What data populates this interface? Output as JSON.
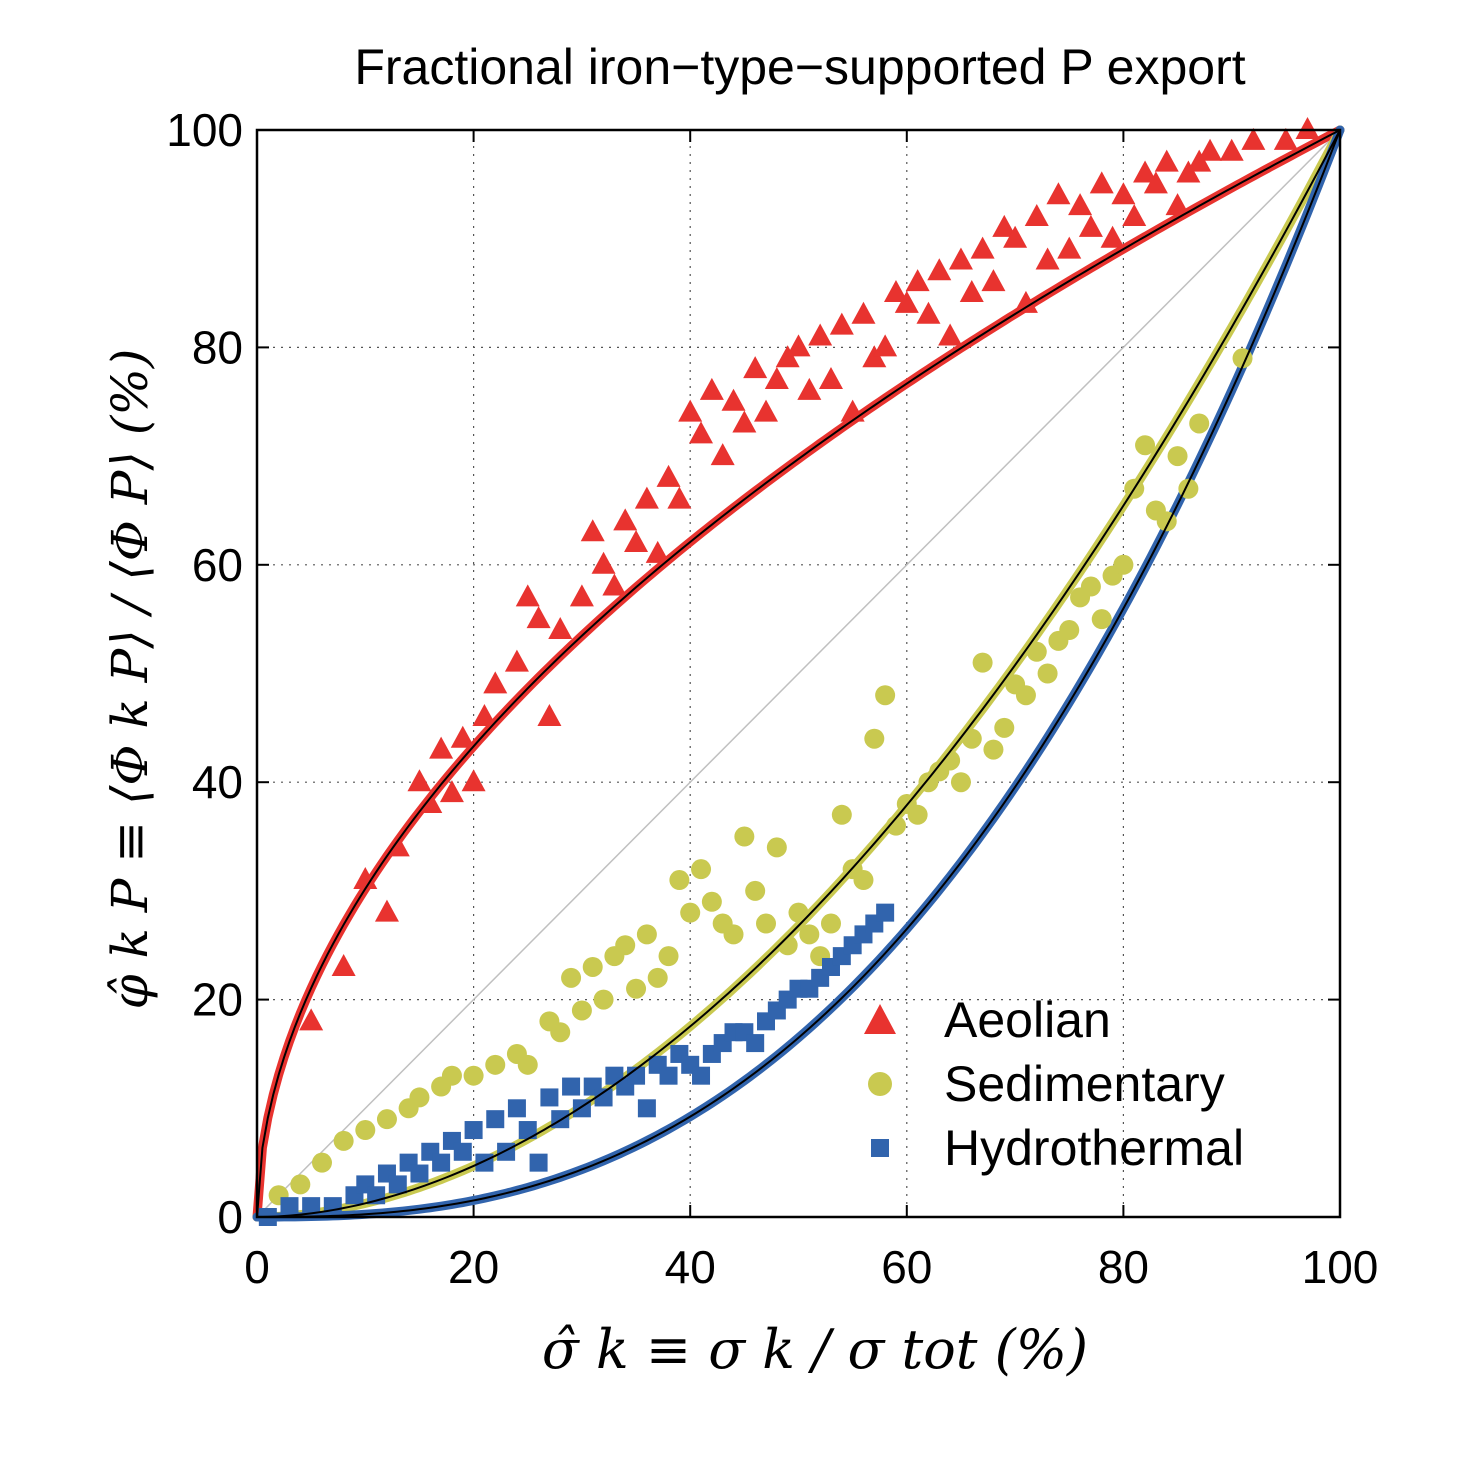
{
  "chart_data": {
    "type": "scatter",
    "title": "Fractional iron−type−supported P export",
    "xlabel": "σ̂ k ≡ σ k / σ tot (%)",
    "ylabel": "φ̂ k P ≡ ⟨Φ k P⟩ / ⟨Φ P⟩ (%)",
    "xlim": [
      0,
      100
    ],
    "ylim": [
      0,
      100
    ],
    "x_ticks": [
      "0",
      "20",
      "40",
      "60",
      "80",
      "100"
    ],
    "y_ticks": [
      "0",
      "20",
      "40",
      "60",
      "80",
      "100"
    ],
    "grid": true,
    "legend_position": "bottom-right",
    "colors": {
      "aeolian": "#e8332f",
      "sedimentary": "#c9c950",
      "hydrothermal": "#3164ad",
      "fit": "#000000",
      "identity": "#c0c0c0"
    },
    "series": [
      {
        "name": "Aeolian",
        "marker": "triangle",
        "color": "#e8332f",
        "points": [
          [
            5,
            18
          ],
          [
            8,
            23
          ],
          [
            10,
            31
          ],
          [
            12,
            28
          ],
          [
            13,
            34
          ],
          [
            15,
            40
          ],
          [
            16,
            38
          ],
          [
            17,
            43
          ],
          [
            18,
            39
          ],
          [
            19,
            44
          ],
          [
            20,
            40
          ],
          [
            21,
            46
          ],
          [
            22,
            49
          ],
          [
            24,
            51
          ],
          [
            25,
            57
          ],
          [
            26,
            55
          ],
          [
            27,
            46
          ],
          [
            28,
            54
          ],
          [
            30,
            57
          ],
          [
            31,
            63
          ],
          [
            32,
            60
          ],
          [
            33,
            58
          ],
          [
            34,
            64
          ],
          [
            35,
            62
          ],
          [
            36,
            66
          ],
          [
            37,
            61
          ],
          [
            38,
            68
          ],
          [
            39,
            66
          ],
          [
            40,
            74
          ],
          [
            41,
            72
          ],
          [
            42,
            76
          ],
          [
            43,
            70
          ],
          [
            44,
            75
          ],
          [
            45,
            73
          ],
          [
            46,
            78
          ],
          [
            47,
            74
          ],
          [
            48,
            77
          ],
          [
            49,
            79
          ],
          [
            50,
            80
          ],
          [
            51,
            76
          ],
          [
            52,
            81
          ],
          [
            53,
            77
          ],
          [
            54,
            82
          ],
          [
            55,
            74
          ],
          [
            56,
            83
          ],
          [
            57,
            79
          ],
          [
            58,
            80
          ],
          [
            59,
            85
          ],
          [
            60,
            84
          ],
          [
            61,
            86
          ],
          [
            62,
            83
          ],
          [
            63,
            87
          ],
          [
            64,
            81
          ],
          [
            65,
            88
          ],
          [
            66,
            85
          ],
          [
            67,
            89
          ],
          [
            68,
            86
          ],
          [
            69,
            91
          ],
          [
            70,
            90
          ],
          [
            71,
            84
          ],
          [
            72,
            92
          ],
          [
            73,
            88
          ],
          [
            74,
            94
          ],
          [
            75,
            89
          ],
          [
            76,
            93
          ],
          [
            77,
            91
          ],
          [
            78,
            95
          ],
          [
            79,
            90
          ],
          [
            80,
            94
          ],
          [
            81,
            92
          ],
          [
            82,
            96
          ],
          [
            83,
            95
          ],
          [
            84,
            97
          ],
          [
            85,
            93
          ],
          [
            86,
            96
          ],
          [
            87,
            97
          ],
          [
            88,
            98
          ],
          [
            90,
            98
          ],
          [
            92,
            99
          ],
          [
            95,
            99
          ],
          [
            97,
            100
          ]
        ]
      },
      {
        "name": "Sedimentary",
        "marker": "circle",
        "color": "#c9c950",
        "points": [
          [
            2,
            2
          ],
          [
            4,
            3
          ],
          [
            6,
            5
          ],
          [
            8,
            7
          ],
          [
            10,
            8
          ],
          [
            12,
            9
          ],
          [
            14,
            10
          ],
          [
            15,
            11
          ],
          [
            17,
            12
          ],
          [
            18,
            13
          ],
          [
            20,
            13
          ],
          [
            22,
            14
          ],
          [
            24,
            15
          ],
          [
            25,
            14
          ],
          [
            27,
            18
          ],
          [
            28,
            17
          ],
          [
            29,
            22
          ],
          [
            30,
            19
          ],
          [
            31,
            23
          ],
          [
            32,
            20
          ],
          [
            33,
            24
          ],
          [
            34,
            25
          ],
          [
            35,
            21
          ],
          [
            36,
            26
          ],
          [
            37,
            22
          ],
          [
            38,
            24
          ],
          [
            39,
            31
          ],
          [
            40,
            28
          ],
          [
            41,
            32
          ],
          [
            42,
            29
          ],
          [
            43,
            27
          ],
          [
            44,
            26
          ],
          [
            45,
            35
          ],
          [
            46,
            30
          ],
          [
            47,
            27
          ],
          [
            48,
            34
          ],
          [
            49,
            25
          ],
          [
            50,
            28
          ],
          [
            51,
            26
          ],
          [
            52,
            24
          ],
          [
            53,
            27
          ],
          [
            54,
            37
          ],
          [
            55,
            32
          ],
          [
            56,
            31
          ],
          [
            57,
            44
          ],
          [
            58,
            48
          ],
          [
            59,
            36
          ],
          [
            60,
            38
          ],
          [
            61,
            37
          ],
          [
            62,
            40
          ],
          [
            63,
            41
          ],
          [
            64,
            42
          ],
          [
            65,
            40
          ],
          [
            66,
            44
          ],
          [
            67,
            51
          ],
          [
            68,
            43
          ],
          [
            69,
            45
          ],
          [
            70,
            49
          ],
          [
            71,
            48
          ],
          [
            72,
            52
          ],
          [
            73,
            50
          ],
          [
            74,
            53
          ],
          [
            75,
            54
          ],
          [
            76,
            57
          ],
          [
            77,
            58
          ],
          [
            78,
            55
          ],
          [
            79,
            59
          ],
          [
            80,
            60
          ],
          [
            81,
            67
          ],
          [
            82,
            71
          ],
          [
            83,
            65
          ],
          [
            84,
            64
          ],
          [
            85,
            70
          ],
          [
            86,
            67
          ],
          [
            87,
            73
          ],
          [
            91,
            79
          ]
        ]
      },
      {
        "name": "Hydrothermal",
        "marker": "square",
        "color": "#3164ad",
        "points": [
          [
            1,
            0
          ],
          [
            3,
            1
          ],
          [
            5,
            1
          ],
          [
            7,
            1
          ],
          [
            9,
            2
          ],
          [
            10,
            3
          ],
          [
            11,
            2
          ],
          [
            12,
            4
          ],
          [
            13,
            3
          ],
          [
            14,
            5
          ],
          [
            15,
            4
          ],
          [
            16,
            6
          ],
          [
            17,
            5
          ],
          [
            18,
            7
          ],
          [
            19,
            6
          ],
          [
            20,
            8
          ],
          [
            21,
            5
          ],
          [
            22,
            9
          ],
          [
            23,
            6
          ],
          [
            24,
            10
          ],
          [
            25,
            8
          ],
          [
            26,
            5
          ],
          [
            27,
            11
          ],
          [
            28,
            9
          ],
          [
            29,
            12
          ],
          [
            30,
            10
          ],
          [
            31,
            12
          ],
          [
            32,
            11
          ],
          [
            33,
            13
          ],
          [
            34,
            12
          ],
          [
            35,
            13
          ],
          [
            36,
            10
          ],
          [
            37,
            14
          ],
          [
            38,
            13
          ],
          [
            39,
            15
          ],
          [
            40,
            14
          ],
          [
            41,
            13
          ],
          [
            42,
            15
          ],
          [
            43,
            16
          ],
          [
            44,
            17
          ],
          [
            45,
            17
          ],
          [
            46,
            16
          ],
          [
            47,
            18
          ],
          [
            48,
            19
          ],
          [
            49,
            20
          ],
          [
            50,
            21
          ],
          [
            51,
            21
          ],
          [
            52,
            22
          ],
          [
            53,
            23
          ],
          [
            54,
            24
          ],
          [
            55,
            25
          ],
          [
            56,
            26
          ],
          [
            57,
            27
          ],
          [
            58,
            28
          ]
        ]
      }
    ],
    "fits": [
      {
        "series": "Aeolian",
        "exponent": 0.52
      },
      {
        "series": "Sedimentary",
        "exponent": 1.9
      },
      {
        "series": "Hydrothermal",
        "exponent": 2.6
      }
    ]
  }
}
